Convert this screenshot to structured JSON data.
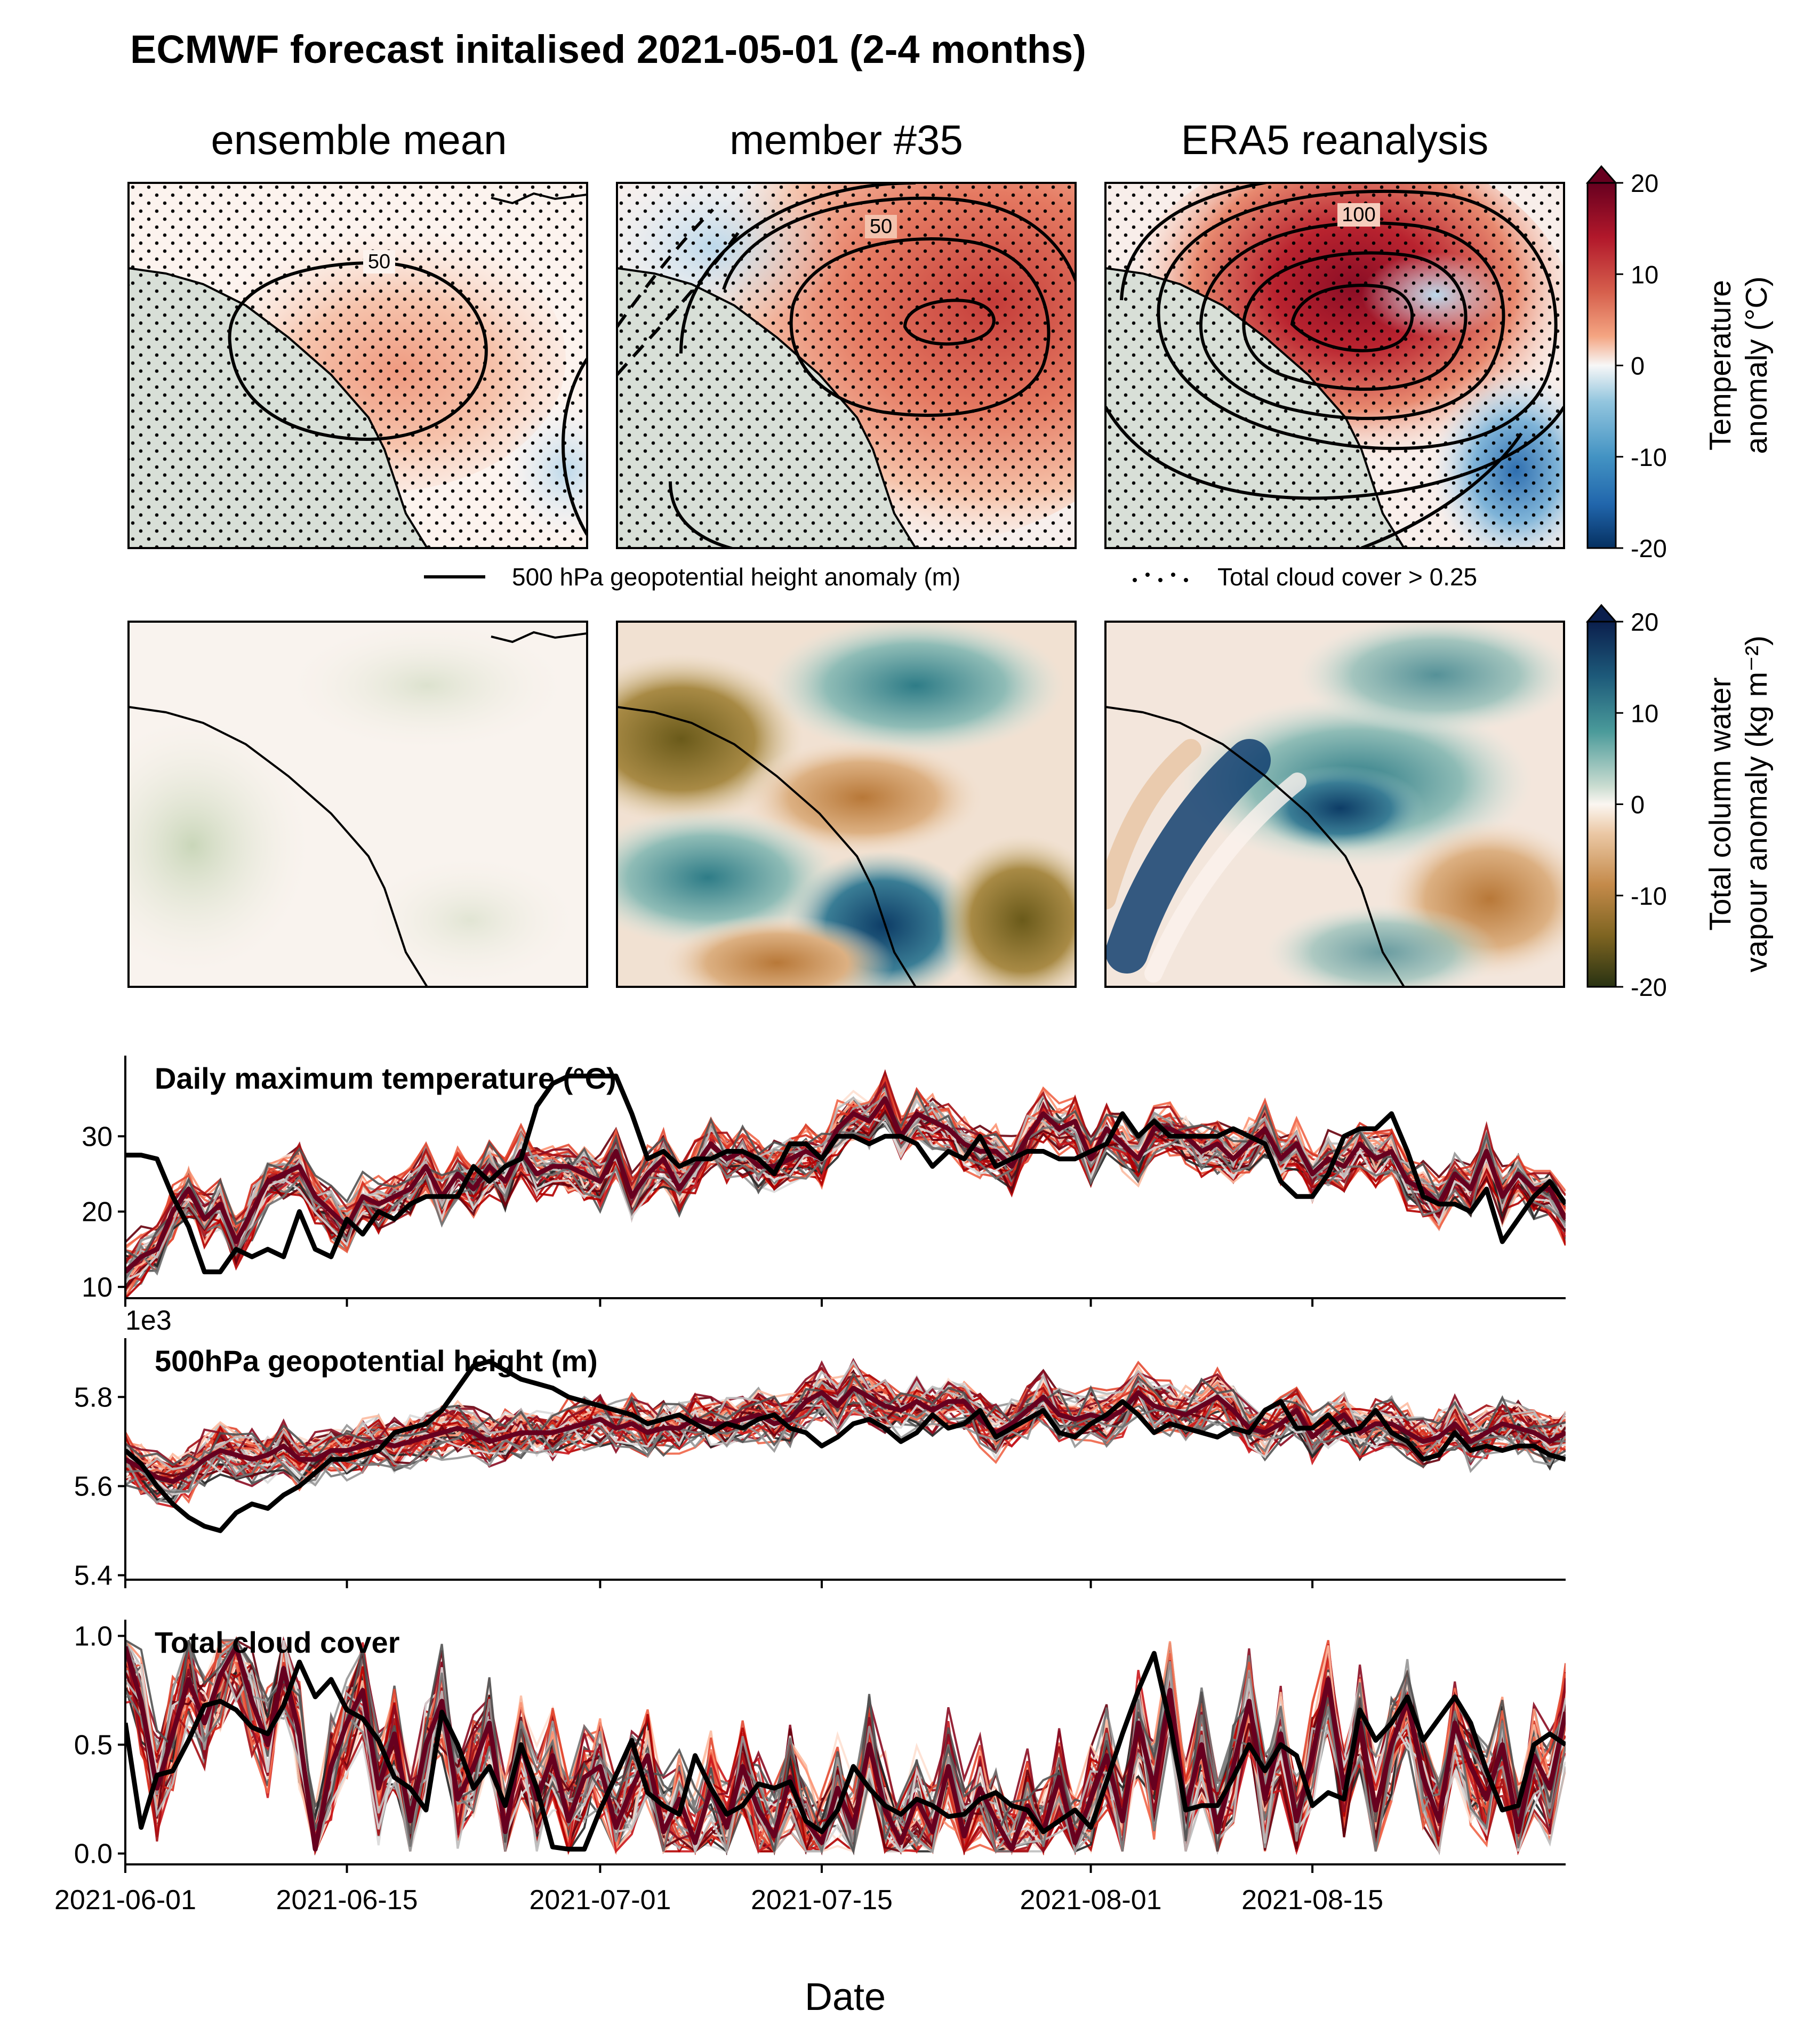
{
  "title": "ECMWF forecast initalised 2021-05-01 (2-4 months)",
  "columns": [
    "ensemble mean",
    "member #35",
    "ERA5 reanalysis"
  ],
  "colors": {
    "land": "#d8dfd7",
    "coast": "#000000",
    "reanalysis_line": "#000000",
    "warm_strong": "#67001f",
    "warm_mid": "#d6604d",
    "warm_light": "#fddbc7",
    "cool_light": "#d1e5f0",
    "cool_mid": "#4393c3",
    "cool_strong": "#053061",
    "moist_strong": "#0c2c52",
    "moist_mid": "#3a8a90",
    "dry_mid": "#b2753a",
    "dry_strong": "#2f3a0a",
    "background": "#ffffff"
  },
  "maps": {
    "temperature_row": {
      "panels": [
        {
          "name": "ensemble mean",
          "contour_labels": [
            "50"
          ]
        },
        {
          "name": "member #35",
          "contour_labels": [
            "50"
          ]
        },
        {
          "name": "ERA5 reanalysis",
          "contour_labels": [
            "100"
          ]
        }
      ],
      "colorbar": {
        "label_lines": [
          "Temperature",
          "anomaly (°C)"
        ],
        "ticks": [
          "20",
          "10",
          "0",
          "-10",
          "-20"
        ],
        "range": [
          -20,
          20
        ],
        "extend": "max"
      }
    },
    "legend": {
      "line_label": "500 hPa geopotential height anomaly (m)",
      "dots_label": "Total cloud cover > 0.25"
    },
    "water_row": {
      "colorbar": {
        "label_lines": [
          "Total column water",
          "vapour anomaly (kg m⁻²)"
        ],
        "ticks": [
          "20",
          "10",
          "0",
          "-10",
          "-20"
        ],
        "range": [
          -20,
          20
        ],
        "extend": "max"
      }
    }
  },
  "chart_data": [
    {
      "type": "line",
      "title": "Daily maximum temperature (°C)",
      "xlabel": "",
      "ylabel": "",
      "x_start": "2021-06-01",
      "n_days": 92,
      "ylim": [
        8.5,
        40
      ],
      "yticks": [
        10,
        20,
        30
      ],
      "ytick_labels": [
        "10",
        "20",
        "30"
      ],
      "ensemble_members": 50,
      "series": [
        {
          "name": "ERA5 reanalysis",
          "values": [
            27.5,
            27.5,
            27,
            22,
            18,
            12,
            12,
            15,
            14,
            15,
            14,
            20,
            15,
            14,
            19,
            17,
            20,
            19,
            21,
            22,
            22,
            22,
            26,
            24,
            26,
            27,
            34,
            37,
            38,
            38,
            38,
            38,
            33,
            27,
            28,
            26,
            27,
            27,
            28,
            28,
            27,
            25,
            29,
            29,
            27,
            30,
            30,
            29,
            30,
            30,
            29,
            26,
            28,
            27,
            30,
            26,
            27,
            28,
            28,
            27,
            27,
            28,
            29,
            33,
            30,
            32,
            30,
            30,
            30,
            30,
            31,
            30,
            29,
            24,
            22,
            22,
            25,
            30,
            31,
            31,
            33,
            28,
            22,
            21,
            21,
            20,
            23,
            16,
            19,
            22,
            24,
            21
          ]
        },
        {
          "name": "member #35",
          "values": [
            12,
            14,
            15,
            20,
            23,
            19,
            21,
            16,
            20,
            24,
            25,
            26,
            22,
            20,
            18,
            22,
            21,
            22,
            23,
            26,
            22,
            25,
            23,
            26,
            24,
            28,
            25,
            26,
            26,
            25,
            24,
            28,
            22,
            25,
            27,
            23,
            26,
            29,
            27,
            28,
            26,
            26,
            27,
            28,
            27,
            31,
            33,
            32,
            35,
            30,
            33,
            32,
            31,
            29,
            28,
            28,
            26,
            30,
            33,
            31,
            32,
            27,
            31,
            29,
            27,
            31,
            31,
            30,
            28,
            29,
            27,
            29,
            31,
            27,
            29,
            25,
            27,
            26,
            29,
            27,
            28,
            24,
            23,
            21,
            25,
            23,
            28,
            22,
            25,
            23,
            23,
            19
          ]
        }
      ]
    },
    {
      "type": "line",
      "title": "500hPa geopotential height (m)",
      "xlabel": "",
      "ylabel": "",
      "offset_text": "1e3",
      "x_start": "2021-06-01",
      "n_days": 92,
      "ylim": [
        5.39,
        5.92
      ],
      "yticks": [
        5.4,
        5.6,
        5.8
      ],
      "ytick_labels": [
        "5.4",
        "5.6",
        "5.8"
      ],
      "ensemble_members": 50,
      "series": [
        {
          "name": "ERA5 reanalysis",
          "values": [
            5.68,
            5.65,
            5.6,
            5.56,
            5.53,
            5.51,
            5.5,
            5.54,
            5.56,
            5.55,
            5.58,
            5.6,
            5.63,
            5.66,
            5.66,
            5.67,
            5.68,
            5.72,
            5.73,
            5.74,
            5.77,
            5.82,
            5.87,
            5.88,
            5.86,
            5.84,
            5.83,
            5.82,
            5.8,
            5.79,
            5.78,
            5.77,
            5.76,
            5.74,
            5.75,
            5.76,
            5.74,
            5.72,
            5.74,
            5.73,
            5.75,
            5.76,
            5.73,
            5.72,
            5.69,
            5.71,
            5.74,
            5.75,
            5.73,
            5.7,
            5.72,
            5.76,
            5.73,
            5.74,
            5.77,
            5.71,
            5.73,
            5.75,
            5.77,
            5.72,
            5.71,
            5.74,
            5.76,
            5.79,
            5.76,
            5.72,
            5.74,
            5.73,
            5.72,
            5.71,
            5.73,
            5.72,
            5.77,
            5.79,
            5.73,
            5.73,
            5.76,
            5.72,
            5.73,
            5.77,
            5.72,
            5.7,
            5.66,
            5.67,
            5.72,
            5.68,
            5.69,
            5.68,
            5.69,
            5.69,
            5.67,
            5.66
          ]
        },
        {
          "name": "member #35",
          "values": [
            5.66,
            5.64,
            5.62,
            5.61,
            5.63,
            5.66,
            5.68,
            5.67,
            5.66,
            5.67,
            5.69,
            5.66,
            5.66,
            5.68,
            5.68,
            5.69,
            5.7,
            5.69,
            5.7,
            5.71,
            5.72,
            5.73,
            5.72,
            5.7,
            5.71,
            5.72,
            5.72,
            5.72,
            5.73,
            5.74,
            5.75,
            5.73,
            5.74,
            5.72,
            5.73,
            5.73,
            5.75,
            5.74,
            5.74,
            5.75,
            5.76,
            5.74,
            5.75,
            5.79,
            5.81,
            5.78,
            5.82,
            5.8,
            5.78,
            5.77,
            5.79,
            5.77,
            5.79,
            5.79,
            5.75,
            5.72,
            5.74,
            5.77,
            5.8,
            5.76,
            5.75,
            5.76,
            5.75,
            5.77,
            5.81,
            5.78,
            5.77,
            5.76,
            5.78,
            5.8,
            5.77,
            5.73,
            5.72,
            5.74,
            5.77,
            5.71,
            5.74,
            5.76,
            5.72,
            5.74,
            5.74,
            5.72,
            5.7,
            5.71,
            5.74,
            5.7,
            5.72,
            5.74,
            5.73,
            5.72,
            5.7,
            5.72
          ]
        }
      ]
    },
    {
      "type": "line",
      "title": "Total cloud cover",
      "xlabel": "Date",
      "ylabel": "",
      "x_start": "2021-06-01",
      "n_days": 92,
      "ylim": [
        -0.05,
        1.05
      ],
      "yticks": [
        0.0,
        0.5,
        1.0
      ],
      "ytick_labels": [
        "0.0",
        "0.5",
        "1.0"
      ],
      "xtick_labels": [
        "2021-06-01",
        "2021-06-15",
        "2021-07-01",
        "2021-07-15",
        "2021-08-01",
        "2021-08-15"
      ],
      "ensemble_members": 50,
      "series": [
        {
          "name": "ERA5 reanalysis",
          "values": [
            0.6,
            0.12,
            0.36,
            0.38,
            0.52,
            0.68,
            0.7,
            0.66,
            0.58,
            0.55,
            0.68,
            0.88,
            0.72,
            0.8,
            0.66,
            0.62,
            0.52,
            0.35,
            0.3,
            0.2,
            0.65,
            0.5,
            0.3,
            0.4,
            0.22,
            0.5,
            0.3,
            0.03,
            0.02,
            0.02,
            0.2,
            0.36,
            0.52,
            0.28,
            0.22,
            0.18,
            0.45,
            0.3,
            0.18,
            0.22,
            0.32,
            0.3,
            0.33,
            0.15,
            0.1,
            0.2,
            0.4,
            0.3,
            0.22,
            0.18,
            0.25,
            0.22,
            0.17,
            0.18,
            0.25,
            0.28,
            0.22,
            0.2,
            0.1,
            0.15,
            0.2,
            0.12,
            0.33,
            0.55,
            0.75,
            0.92,
            0.6,
            0.2,
            0.22,
            0.22,
            0.35,
            0.5,
            0.38,
            0.5,
            0.45,
            0.22,
            0.28,
            0.25,
            0.66,
            0.52,
            0.6,
            0.72,
            0.52,
            0.62,
            0.72,
            0.6,
            0.38,
            0.2,
            0.22,
            0.5,
            0.55,
            0.5
          ]
        },
        {
          "name": "member #35",
          "values": [
            0.95,
            0.7,
            0.3,
            0.55,
            0.8,
            0.6,
            0.82,
            0.95,
            0.7,
            0.5,
            0.85,
            0.55,
            0.02,
            0.4,
            0.6,
            0.75,
            0.3,
            0.55,
            0.15,
            0.5,
            0.7,
            0.25,
            0.4,
            0.6,
            0.1,
            0.5,
            0.25,
            0.45,
            0.15,
            0.35,
            0.4,
            0.12,
            0.3,
            0.45,
            0.1,
            0.25,
            0.05,
            0.3,
            0.12,
            0.4,
            0.2,
            0.08,
            0.35,
            0.15,
            0.05,
            0.3,
            0.12,
            0.5,
            0.2,
            0.05,
            0.25,
            0.1,
            0.4,
            0.08,
            0.3,
            0.15,
            0.02,
            0.22,
            0.1,
            0.35,
            0.05,
            0.25,
            0.45,
            0.15,
            0.6,
            0.3,
            0.75,
            0.2,
            0.5,
            0.1,
            0.4,
            0.7,
            0.25,
            0.55,
            0.15,
            0.45,
            0.8,
            0.3,
            0.6,
            0.2,
            0.5,
            0.7,
            0.35,
            0.15,
            0.6,
            0.4,
            0.25,
            0.5,
            0.1,
            0.45,
            0.3,
            0.65
          ]
        }
      ]
    }
  ]
}
